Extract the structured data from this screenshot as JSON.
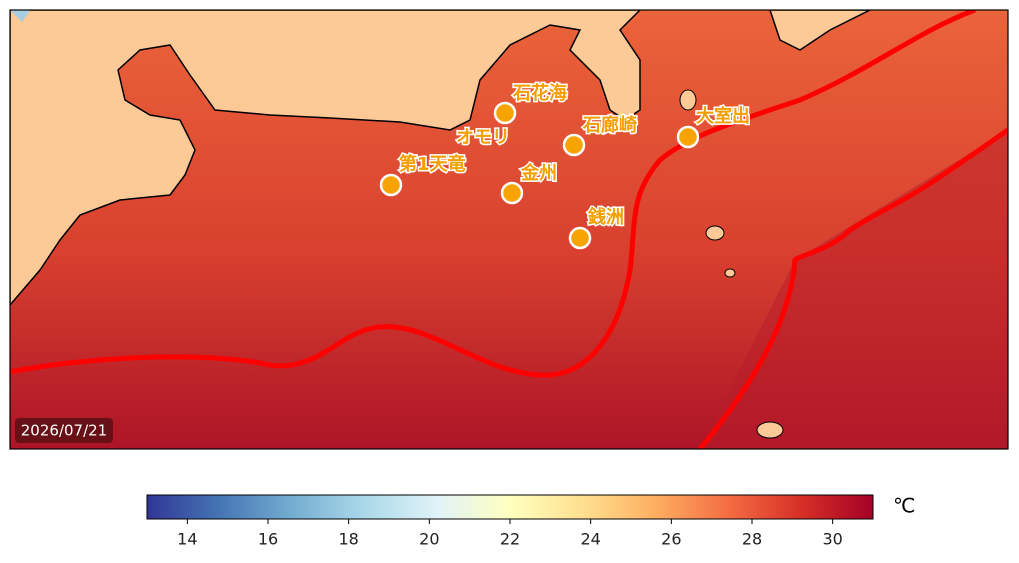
{
  "map": {
    "date": "2026/07/21",
    "stations": [
      {
        "label": "石花海"
      },
      {
        "label": "石廊崎"
      },
      {
        "label": "大室出"
      },
      {
        "label": "オモリ"
      },
      {
        "label": "第1天竜"
      },
      {
        "label": "金州"
      },
      {
        "label": "銭洲"
      }
    ]
  },
  "colorbar": {
    "lim": [
      13,
      31
    ],
    "ticks": [
      14,
      16,
      18,
      20,
      22,
      24,
      26,
      28,
      30
    ],
    "unit": "℃"
  }
}
